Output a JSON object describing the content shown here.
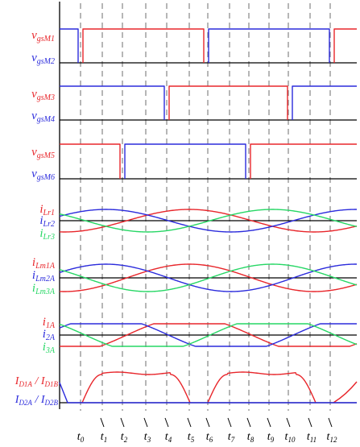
{
  "colors": {
    "red": "#e8262b",
    "blue": "#2b2bdc",
    "green": "#27d765",
    "black": "#000000",
    "dash": "#7a7a7a"
  },
  "labels": {
    "gs": [
      {
        "base": "v",
        "sub": "gsM1",
        "color": "red"
      },
      {
        "base": "v",
        "sub": "gsM2",
        "color": "blue"
      },
      {
        "base": "v",
        "sub": "gsM3",
        "color": "red"
      },
      {
        "base": "v",
        "sub": "gsM4",
        "color": "blue"
      },
      {
        "base": "v",
        "sub": "gsM5",
        "color": "red"
      },
      {
        "base": "v",
        "sub": "gsM6",
        "color": "blue"
      }
    ],
    "lr": [
      {
        "base": "i",
        "sub": "Lr1",
        "color": "red"
      },
      {
        "base": "i",
        "sub": "Lr2",
        "color": "blue"
      },
      {
        "base": "i",
        "sub": "Lr3",
        "color": "green"
      }
    ],
    "lm": [
      {
        "base": "i",
        "sub": "Lm1A",
        "color": "red"
      },
      {
        "base": "i",
        "sub": "Lm2A",
        "color": "blue"
      },
      {
        "base": "i",
        "sub": "Lm3A",
        "color": "green"
      }
    ],
    "ia": [
      {
        "base": "i",
        "sub": "1A",
        "color": "red"
      },
      {
        "base": "i",
        "sub": "2A",
        "color": "blue"
      },
      {
        "base": "i",
        "sub": "3A",
        "color": "green"
      }
    ],
    "diode": [
      {
        "parts": [
          [
            "I",
            ""
          ],
          [
            "D1A",
            "sub"
          ],
          [
            " / ",
            ""
          ],
          [
            "I",
            ""
          ],
          [
            "D1B",
            "sub"
          ]
        ],
        "color": "red"
      },
      {
        "parts": [
          [
            "I",
            ""
          ],
          [
            "D2A",
            "sub"
          ],
          [
            " / ",
            ""
          ],
          [
            "I",
            ""
          ],
          [
            "D2B",
            "sub"
          ]
        ],
        "color": "blue"
      }
    ]
  },
  "time_labels": [
    "t0",
    "t1",
    "t2",
    "t3",
    "t4",
    "t5",
    "t6",
    "t7",
    "t8",
    "t9",
    "t10",
    "t11",
    "t12"
  ]
}
